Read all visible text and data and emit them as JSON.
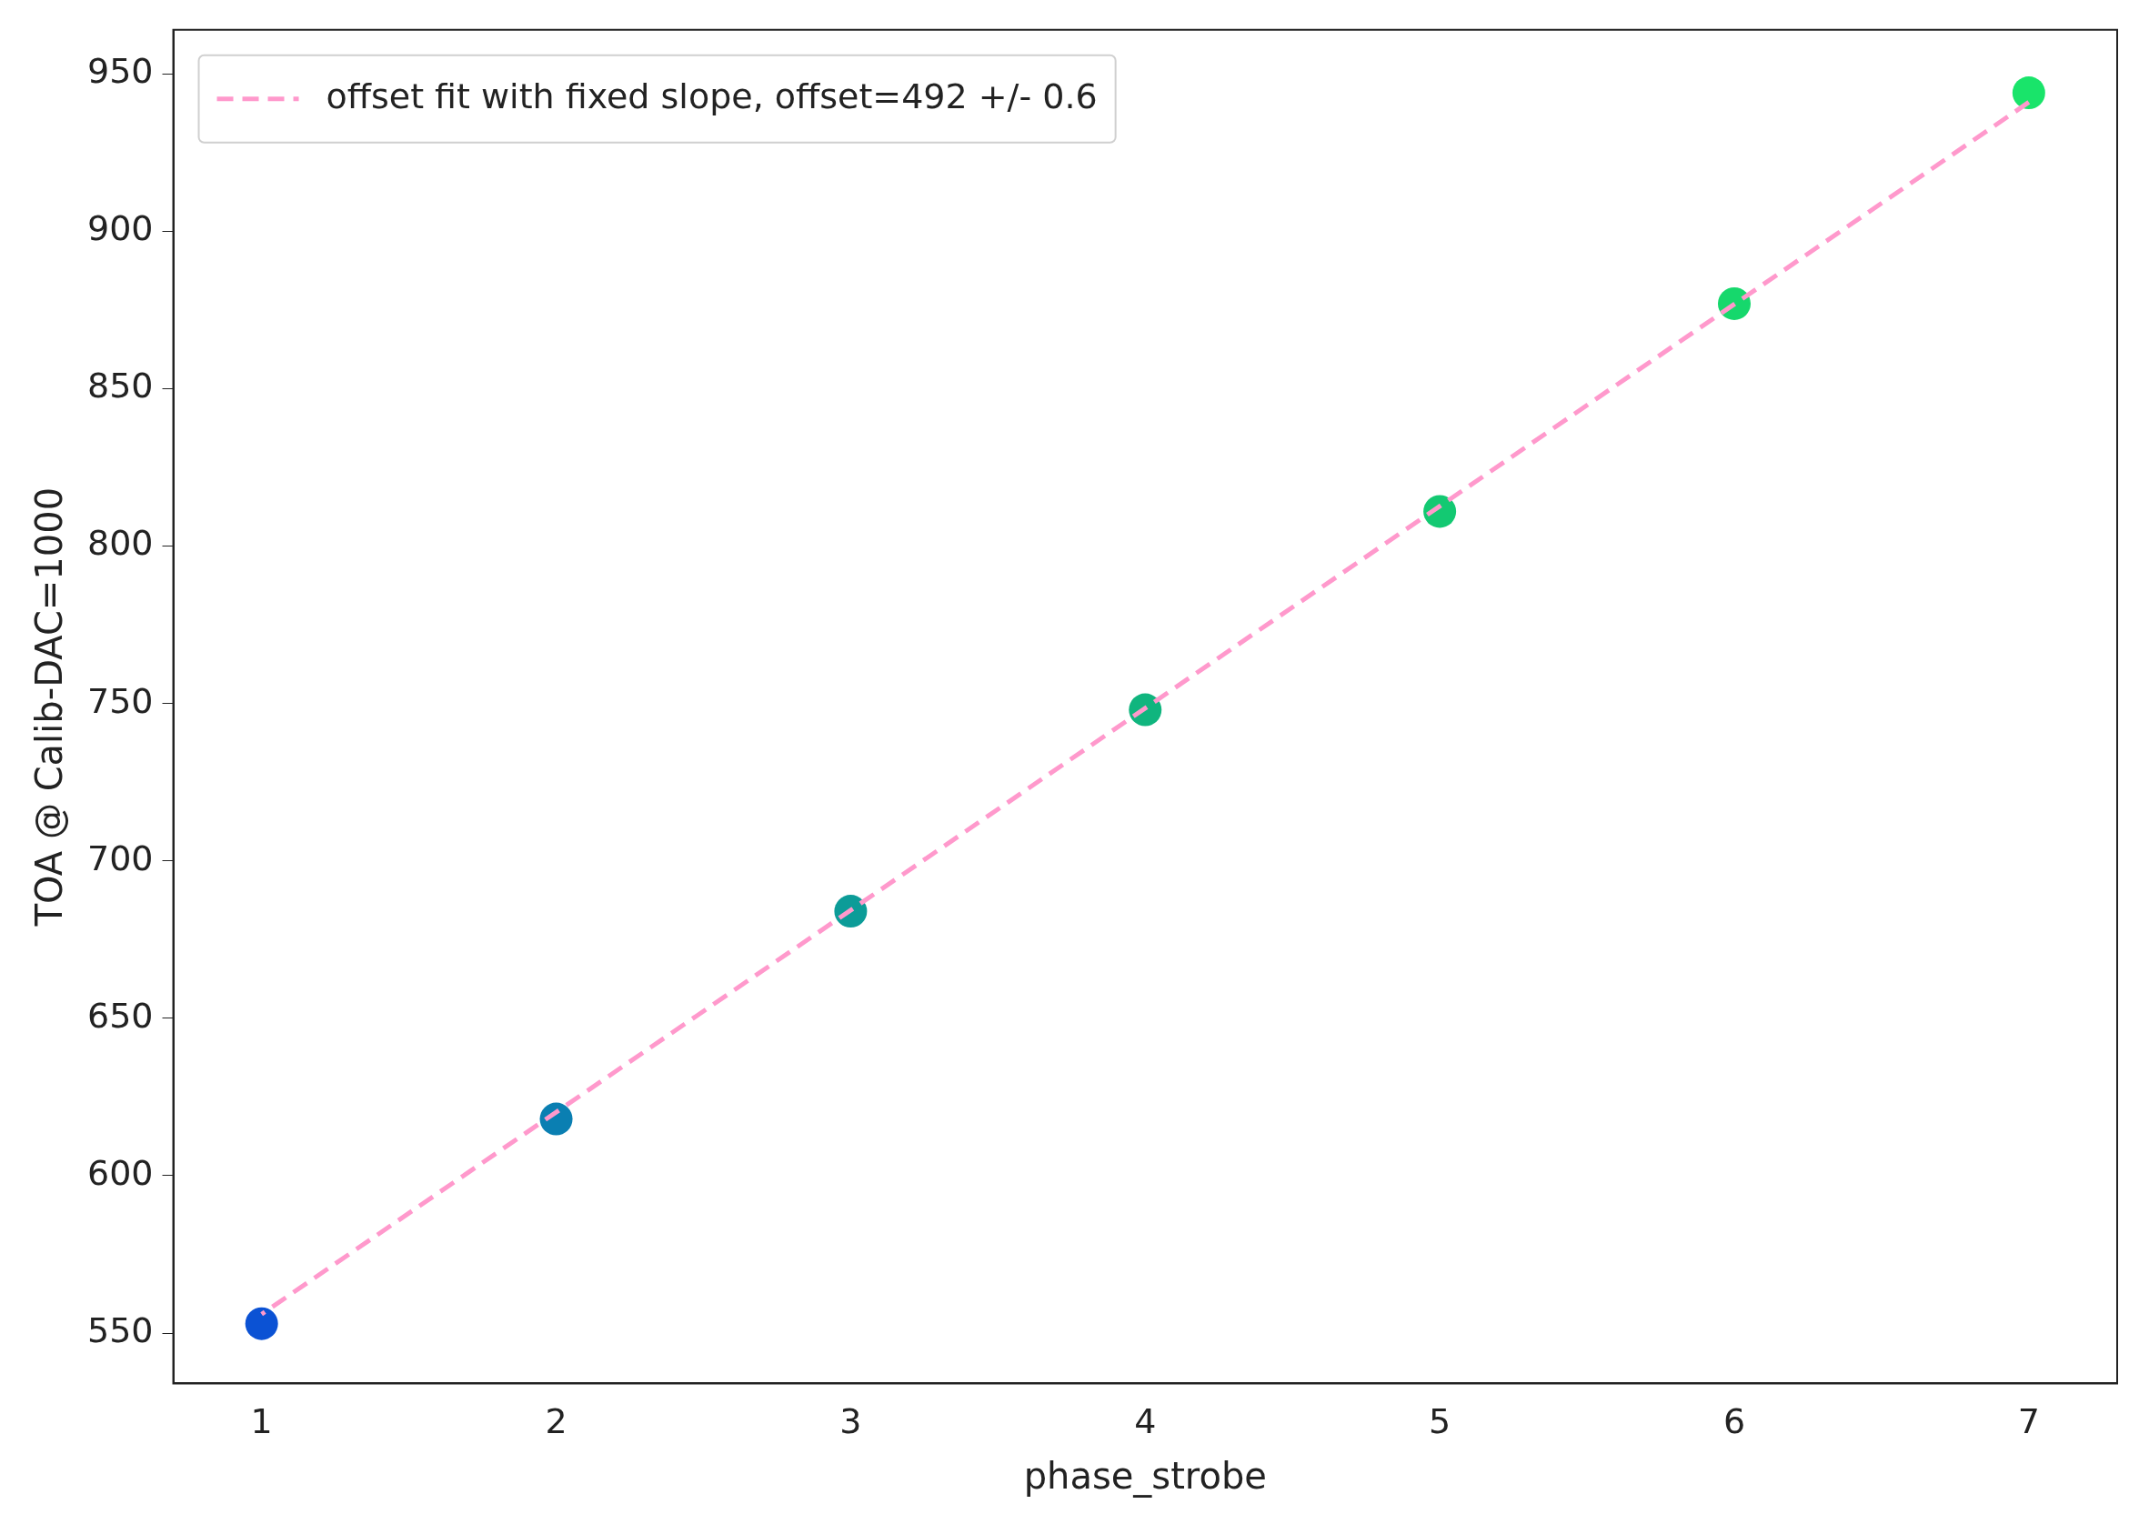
{
  "chart_data": {
    "type": "scatter",
    "xlabel": "phase_strobe",
    "ylabel": "TOA @ Calib-DAC=1000",
    "xlim": [
      0.7,
      7.3
    ],
    "xticks": [
      1,
      2,
      3,
      4,
      5,
      6,
      7
    ],
    "ylim": [
      534,
      964
    ],
    "yticks": [
      550,
      600,
      650,
      700,
      750,
      800,
      850,
      900,
      950
    ],
    "grid": false,
    "legend": "top left",
    "marker": "circle",
    "series": [
      {
        "type": "scatter",
        "x": [
          1,
          2,
          3,
          4,
          5,
          6,
          7
        ],
        "values": [
          553,
          618,
          684,
          748,
          811,
          877,
          944
        ],
        "colors": [
          "#0b52d4",
          "#0a7fb2",
          "#0c9c98",
          "#10b57e",
          "#13c972",
          "#16d86c",
          "#19e46a"
        ]
      },
      {
        "type": "line",
        "name": "offset fit with fixed slope, offset=492 +/- 0.6",
        "color": "#ff99cc",
        "x": [
          1,
          7
        ],
        "values": [
          556,
          941
        ],
        "line_style": "dashed",
        "marker": "none"
      }
    ]
  }
}
